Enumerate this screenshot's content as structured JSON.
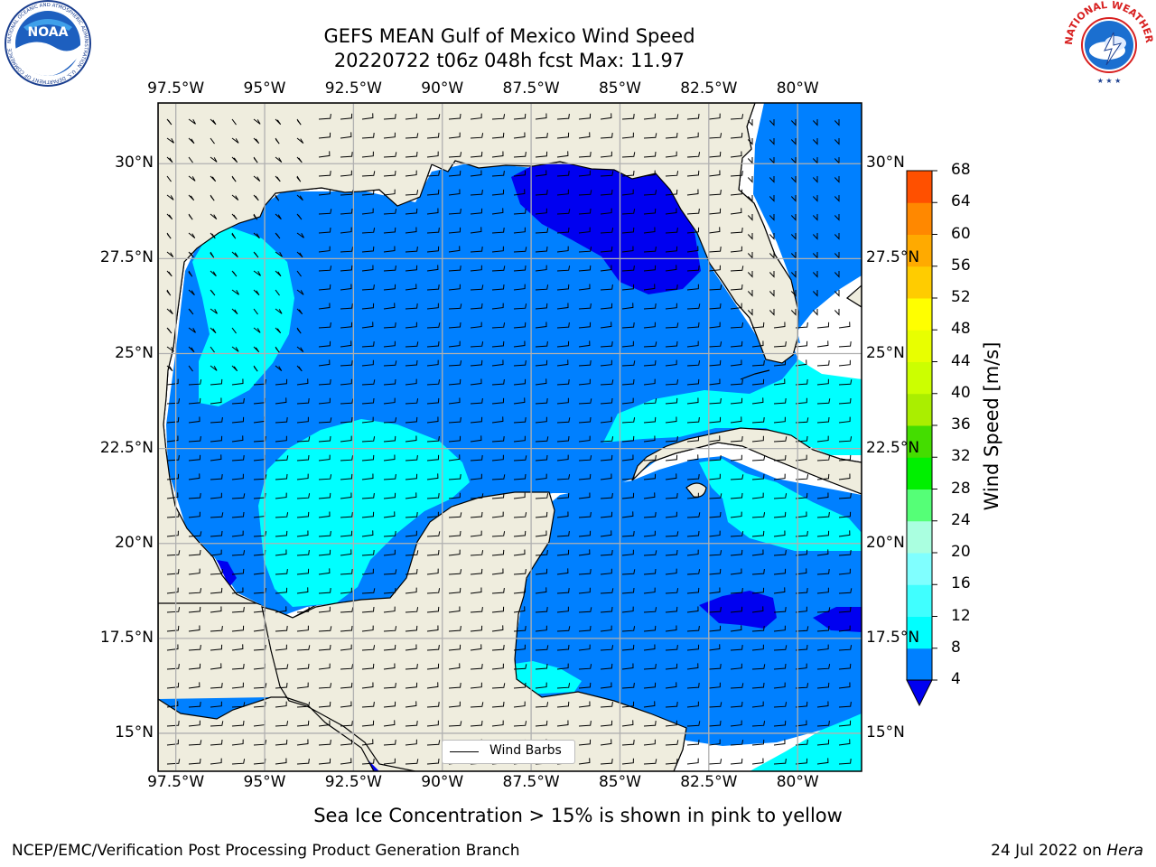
{
  "title": {
    "line1": "GEFS MEAN Gulf of Mexico Wind Speed",
    "line2": "20220722 t06z 048h fcst   Max: 11.97"
  },
  "logos": {
    "left": "NOAA",
    "left_ring": "NATIONAL OCEANIC AND ATMOSPHERIC ADMINISTRATION · U.S. DEPARTMENT OF COMMERCE",
    "right_ring": "NATIONAL WEATHER SERVICE"
  },
  "map": {
    "lon_labels": [
      "97.5°W",
      "95°W",
      "92.5°W",
      "90°W",
      "87.5°W",
      "85°W",
      "82.5°W",
      "80°W"
    ],
    "lat_labels": [
      "15°N",
      "17.5°N",
      "20°N",
      "22.5°N",
      "25°N",
      "27.5°N",
      "30°N"
    ],
    "lon_range": [
      -98,
      -78.2
    ],
    "lat_range": [
      14,
      31.6
    ],
    "grid": true,
    "colors": {
      "land": "#efedde",
      "background": "#ffffff",
      "coast": "#000000",
      "grid": "#b0b0b0"
    },
    "legend": {
      "label": "Wind Barbs",
      "placement": "bottom-center"
    }
  },
  "colorbar": {
    "label": "Wind Speed [m/s]",
    "ticks": [
      "4",
      "8",
      "12",
      "16",
      "20",
      "24",
      "28",
      "32",
      "36",
      "40",
      "44",
      "48",
      "52",
      "56",
      "60",
      "64",
      "68"
    ],
    "colors": [
      "#0080ff",
      "#00ffff",
      "#40ffff",
      "#80ffff",
      "#aaffe0",
      "#55ff77",
      "#00f000",
      "#44dd00",
      "#aaee00",
      "#ccff00",
      "#e8ff00",
      "#ffff00",
      "#ffcc00",
      "#ffaa00",
      "#ff8800",
      "#ff5000",
      "#ff2000",
      "#ff0000"
    ],
    "under_color": "#0000f0"
  },
  "caption": "Sea Ice Concentration > 15% is shown in pink to yellow",
  "footer": {
    "left": "NCEP/EMC/Verification Post Processing Product Generation Branch",
    "right_date": "24 Jul 2022 on ",
    "right_host": "Hera"
  }
}
